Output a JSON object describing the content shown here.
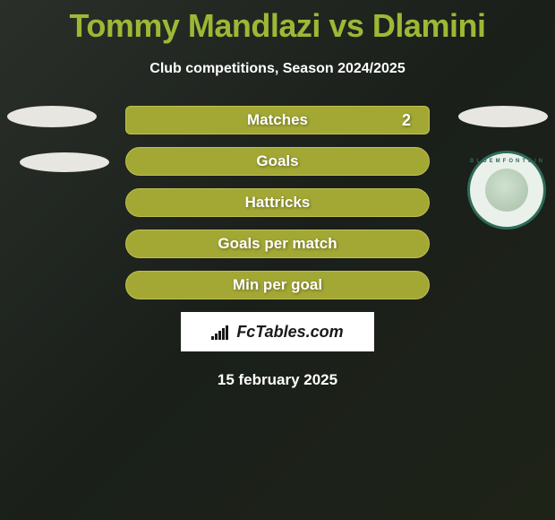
{
  "title": "Tommy Mandlazi vs Dlamini",
  "subtitle": "Club competitions, Season 2024/2025",
  "stats": [
    {
      "label": "Matches",
      "right_value": "2"
    },
    {
      "label": "Goals",
      "right_value": ""
    },
    {
      "label": "Hattricks",
      "right_value": ""
    },
    {
      "label": "Goals per match",
      "right_value": ""
    },
    {
      "label": "Min per goal",
      "right_value": ""
    }
  ],
  "club_badge": {
    "text": "BLOEMFONTEIN"
  },
  "logo": {
    "text": "FcTables.com"
  },
  "date": "15 february 2025",
  "colors": {
    "accent": "#9db835",
    "bar_bg": "#a3a834",
    "bar_border": "#c0c050",
    "text_white": "#ffffff",
    "blob_bg": "#e8e6e0",
    "badge_border": "#2e6b5a",
    "logo_text": "#1a1a1a"
  }
}
